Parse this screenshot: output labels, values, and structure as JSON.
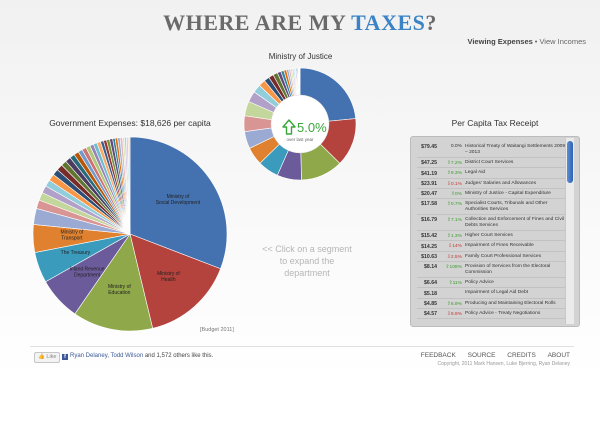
{
  "header": {
    "title_prefix": "WHERE ARE MY ",
    "title_accent": "TAXES",
    "title_suffix": "?"
  },
  "view_toggle": {
    "active": "Viewing Expenses",
    "separator": "•",
    "other": "View Incomes"
  },
  "ministry": {
    "title": "Ministry of Justice",
    "change": "5.0%",
    "change_caption": "over last year"
  },
  "gov": {
    "title": "Government Expenses: $18,626 per capita"
  },
  "prompt": "<< Click on a segment to expand the department",
  "budget_note": "[Budget 2011]",
  "receipt": {
    "title": "Per Capita Tax Receipt",
    "rows": [
      {
        "amount": "$79.45",
        "change": "0.0%",
        "dir": "none",
        "desc": "Historical Treaty of Waitangi Settlements 2009 – 2013"
      },
      {
        "amount": "$47.25",
        "change": "7.2%",
        "dir": "up",
        "desc": "District Court Services"
      },
      {
        "amount": "$41.19",
        "change": "9.3%",
        "dir": "up",
        "desc": "Legal Aid"
      },
      {
        "amount": "$23.91",
        "change": "0.1%",
        "dir": "down",
        "desc": "Judges' Salaries and Allowances"
      },
      {
        "amount": "$20.47",
        "change": "0%",
        "dir": "up",
        "desc": "Ministry of Justice - Capital Expenditure"
      },
      {
        "amount": "$17.58",
        "change": "0.7%",
        "dir": "up",
        "desc": "Specialist Courts, Tribunals and Other Authorities Services"
      },
      {
        "amount": "$16.79",
        "change": "7.1%",
        "dir": "up",
        "desc": "Collection and Enforcement of Fines and Civil Debts Services"
      },
      {
        "amount": "$15.42",
        "change": "1.3%",
        "dir": "up",
        "desc": "Higher Court Services"
      },
      {
        "amount": "$14.25",
        "change": "14%",
        "dir": "down",
        "desc": "Impairment of Fines Receivable"
      },
      {
        "amount": "$10.63",
        "change": "2.5%",
        "dir": "down",
        "desc": "Family Court Professional Services"
      },
      {
        "amount": "$8.14",
        "change": "108%",
        "dir": "up",
        "desc": "Provision of Services from the Electoral Commission"
      },
      {
        "amount": "$6.64",
        "change": "11%",
        "dir": "up",
        "desc": "Policy Advice"
      },
      {
        "amount": "$5.18",
        "change": "",
        "dir": "none",
        "desc": "Impairment of Legal Aid Debt"
      },
      {
        "amount": "$4.85",
        "change": "6.9%",
        "dir": "up",
        "desc": "Producing and Maintaining Electoral Rolls"
      },
      {
        "amount": "$4.57",
        "change": "9.9%",
        "dir": "down",
        "desc": "Policy Advice - Treaty Negotiations"
      }
    ]
  },
  "footer": {
    "like_label": "Like",
    "like_name1": "Ryan Delaney",
    "like_sep": ", ",
    "like_name2": "Todd Wilson",
    "like_rest": " and 1,572 others like this.",
    "nav": [
      "FEEDBACK",
      "SOURCE",
      "CREDITS",
      "ABOUT"
    ],
    "copyright": "Copyright, 2011 Mark Hansen, Luke Bjerring, Ryan Delaney"
  },
  "chart_data": [
    {
      "type": "pie",
      "title": "Government Expenses: $18,626 per capita",
      "slices": [
        {
          "label": "Ministry of Social Development",
          "value": 30,
          "color": "#4472b0"
        },
        {
          "label": "Ministry of Health",
          "value": 15,
          "color": "#b5433d"
        },
        {
          "label": "Ministry of Education",
          "value": 13,
          "color": "#8ea84a"
        },
        {
          "label": "Inland Revenue Department",
          "value": 7,
          "color": "#6c5b9a"
        },
        {
          "label": "The Treasury",
          "value": 5,
          "color": "#3a9bbd"
        },
        {
          "label": "Ministry of Transport",
          "value": 4.5,
          "color": "#e0812f"
        },
        {
          "label": "",
          "value": 2.6,
          "color": "#9aaad3"
        },
        {
          "label": "",
          "value": 1.4,
          "color": "#d99593"
        },
        {
          "label": "",
          "value": 1.3,
          "color": "#c3d69b"
        },
        {
          "label": "",
          "value": 1.2,
          "color": "#b1a0c7"
        },
        {
          "label": "",
          "value": 1.1,
          "color": "#92cddc"
        },
        {
          "label": "",
          "value": 1.1,
          "color": "#f79646"
        },
        {
          "label": "",
          "value": 1.0,
          "color": "#2c4d75"
        },
        {
          "label": "",
          "value": 1.0,
          "color": "#772c2a"
        },
        {
          "label": "",
          "value": 0.9,
          "color": "#5f7530"
        },
        {
          "label": "",
          "value": 0.9,
          "color": "#4d3b62"
        },
        {
          "label": "",
          "value": 0.8,
          "color": "#276a7c"
        },
        {
          "label": "",
          "value": 0.8,
          "color": "#b65708"
        },
        {
          "label": "",
          "value": 0.7,
          "color": "#729aca"
        },
        {
          "label": "",
          "value": 0.7,
          "color": "#cd7371"
        },
        {
          "label": "",
          "value": 0.7,
          "color": "#afc97a"
        },
        {
          "label": "",
          "value": 0.6,
          "color": "#9983b5"
        },
        {
          "label": "",
          "value": 0.6,
          "color": "#6fbdd1"
        },
        {
          "label": "",
          "value": 0.6,
          "color": "#f9ab6b"
        },
        {
          "label": "",
          "value": 0.5,
          "color": "#3a5f8f"
        },
        {
          "label": "",
          "value": 0.5,
          "color": "#943634"
        },
        {
          "label": "",
          "value": 0.5,
          "color": "#77933c"
        },
        {
          "label": "",
          "value": 0.5,
          "color": "#604a7b"
        },
        {
          "label": "",
          "value": 0.4,
          "color": "#31859c"
        },
        {
          "label": "",
          "value": 0.4,
          "color": "#e46c0a"
        },
        {
          "label": "",
          "value": 0.4,
          "color": "#95b3d7"
        },
        {
          "label": "",
          "value": 0.4,
          "color": "#e6b9b8"
        },
        {
          "label": "",
          "value": 0.3,
          "color": "#d7e4bd"
        },
        {
          "label": "",
          "value": 0.3,
          "color": "#ccc1da"
        },
        {
          "label": "",
          "value": 0.3,
          "color": "#b7dee8"
        },
        {
          "label": "",
          "value": 0.3,
          "color": "#fcd5b5"
        }
      ]
    },
    {
      "type": "pie",
      "title": "Ministry of Justice",
      "center_label": "5.0%",
      "slices": [
        {
          "label": "Historical Treaty of Waitangi Settlements 2009 – 2013",
          "value": 79.45,
          "color": "#4472b0"
        },
        {
          "label": "District Court Services",
          "value": 47.25,
          "color": "#b5433d"
        },
        {
          "label": "Legal Aid",
          "value": 41.19,
          "color": "#8ea84a"
        },
        {
          "label": "Judges' Salaries and Allowances",
          "value": 23.91,
          "color": "#6c5b9a"
        },
        {
          "label": "Ministry of Justice - Capital Expenditure",
          "value": 20.47,
          "color": "#3a9bbd"
        },
        {
          "label": "Specialist Courts, Tribunals and Other Authorities Services",
          "value": 17.58,
          "color": "#e0812f"
        },
        {
          "label": "Collection and Enforcement of Fines and Civil Debts Services",
          "value": 16.79,
          "color": "#9aaad3"
        },
        {
          "label": "Higher Court Services",
          "value": 15.42,
          "color": "#d99593"
        },
        {
          "label": "Impairment of Fines Receivable",
          "value": 14.25,
          "color": "#c3d69b"
        },
        {
          "label": "Family Court Professional Services",
          "value": 10.63,
          "color": "#b1a0c7"
        },
        {
          "label": "Provision of Services from the Electoral Commission",
          "value": 8.14,
          "color": "#92cddc"
        },
        {
          "label": "Policy Advice",
          "value": 6.64,
          "color": "#f79646"
        },
        {
          "label": "Impairment of Legal Aid Debt",
          "value": 5.18,
          "color": "#2c4d75"
        },
        {
          "label": "Producing and Maintaining Electoral Rolls",
          "value": 4.85,
          "color": "#772c2a"
        },
        {
          "label": "Policy Advice - Treaty Negotiations",
          "value": 4.57,
          "color": "#5f7530"
        },
        {
          "label": "",
          "value": 3.5,
          "color": "#604a7b"
        },
        {
          "label": "",
          "value": 3.0,
          "color": "#31859c"
        },
        {
          "label": "",
          "value": 2.6,
          "color": "#e46c0a"
        },
        {
          "label": "",
          "value": 2.2,
          "color": "#95b3d7"
        },
        {
          "label": "",
          "value": 1.9,
          "color": "#e6b9b8"
        },
        {
          "label": "",
          "value": 1.6,
          "color": "#d7e4bd"
        },
        {
          "label": "",
          "value": 1.4,
          "color": "#ccc1da"
        },
        {
          "label": "",
          "value": 1.2,
          "color": "#b7dee8"
        },
        {
          "label": "",
          "value": 1.0,
          "color": "#fcd5b5"
        },
        {
          "label": "",
          "value": 0.9,
          "color": "#3a5f8f"
        },
        {
          "label": "",
          "value": 0.8,
          "color": "#943634"
        },
        {
          "label": "",
          "value": 0.7,
          "color": "#77933c"
        },
        {
          "label": "",
          "value": 0.6,
          "color": "#4d3b62"
        },
        {
          "label": "",
          "value": 0.5,
          "color": "#276a7c"
        },
        {
          "label": "",
          "value": 0.5,
          "color": "#b65708"
        }
      ]
    }
  ]
}
